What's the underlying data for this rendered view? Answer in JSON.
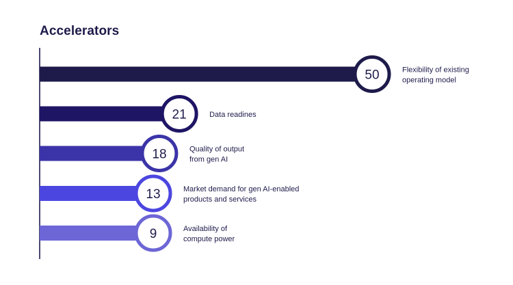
{
  "chart_data": {
    "type": "bar",
    "orientation": "horizontal",
    "title": "Accelerators",
    "categories": [
      "Flexibility of existing\noperating model",
      "Data readines",
      "Quality of output\nfrom gen AI",
      "Market demand for gen AI-enabled\nproducts and services",
      "Availability of\ncompute power"
    ],
    "values": [
      50,
      21,
      18,
      13,
      9
    ],
    "value_labels": [
      "50",
      "21",
      "18",
      "13",
      "9"
    ],
    "colors": [
      "#1e1b4b",
      "#1e1565",
      "#3b34a8",
      "#4c46e0",
      "#6d66d6"
    ],
    "label_color": "#1e1b4b",
    "grid": false,
    "legend": "none"
  }
}
